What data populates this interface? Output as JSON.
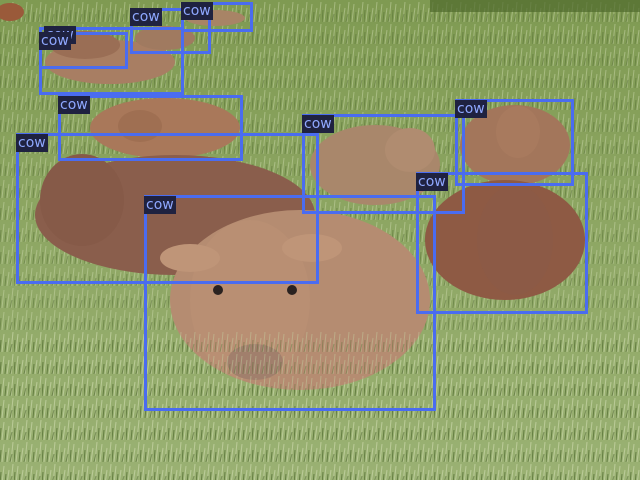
{
  "image": {
    "description_icon": "photo-cows-lying-in-grass"
  },
  "colors": {
    "box_stroke": "#4a6cf0",
    "label_bg": "#1f2240",
    "label_text": "#8fa8ff",
    "grass_dark": "#5e7a3a",
    "grass_light": "#a8bd7c",
    "cow_fill": "#b98e72"
  },
  "detections": [
    {
      "label": "cow"
    },
    {
      "label": "cow"
    },
    {
      "label": "cow"
    },
    {
      "label": "cow"
    },
    {
      "label": "cow"
    },
    {
      "label": "cow"
    },
    {
      "label": "cow"
    },
    {
      "label": "cow"
    },
    {
      "label": "cow"
    },
    {
      "label": "cow"
    }
  ]
}
